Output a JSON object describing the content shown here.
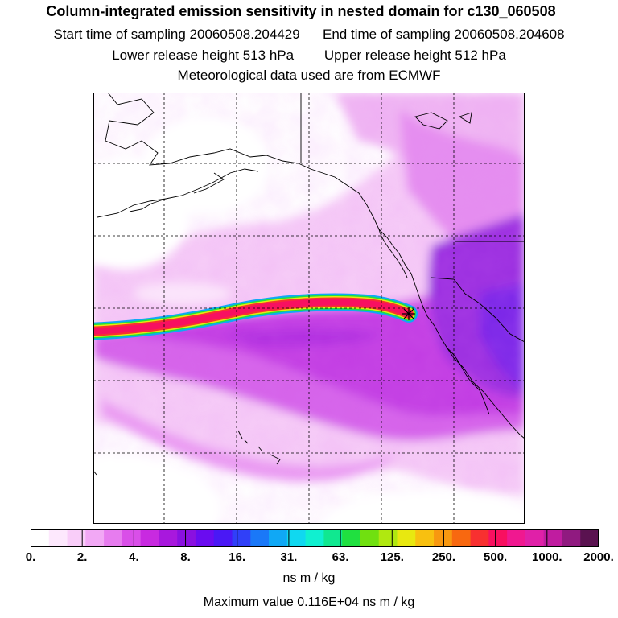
{
  "header": {
    "title": "Column-integrated emission sensitivity in nested domain for c130_060508",
    "start_time": "Start time of sampling 20060508.204429",
    "end_time": "End time of sampling 20060508.204608",
    "lower_height": "Lower release height  513 hPa",
    "upper_height": "Upper release height  512 hPa",
    "met_data": "Meteorological data used are from ECMWF"
  },
  "map": {
    "release_marker": "star-icon",
    "plume": "back-trajectory sensitivity plume"
  },
  "colorbar": {
    "tick_labels": [
      "0.",
      "2.",
      "4.",
      "8.",
      "16.",
      "31.",
      "63.",
      "125.",
      "250.",
      "500.",
      "1000.",
      "2000."
    ],
    "colors": [
      "#ffffff",
      "#fde8fd",
      "#f9cdf9",
      "#f2a8f5",
      "#e77cef",
      "#d94fe8",
      "#c82ae0",
      "#a818dd",
      "#8a10e0",
      "#6a0cf0",
      "#4a18f5",
      "#3040f8",
      "#1a78f8",
      "#10a8f5",
      "#10d8f0",
      "#10f0d0",
      "#10e890",
      "#20e040",
      "#70e010",
      "#b0e810",
      "#e8e810",
      "#f8c010",
      "#f89810",
      "#f86810",
      "#f83030",
      "#f81060",
      "#f01890",
      "#e020a8",
      "#c01ca0",
      "#901a80",
      "#5a1250"
    ],
    "units": "ns m / kg",
    "maximum": "Maximum value  0.116E+04 ns m / kg"
  }
}
